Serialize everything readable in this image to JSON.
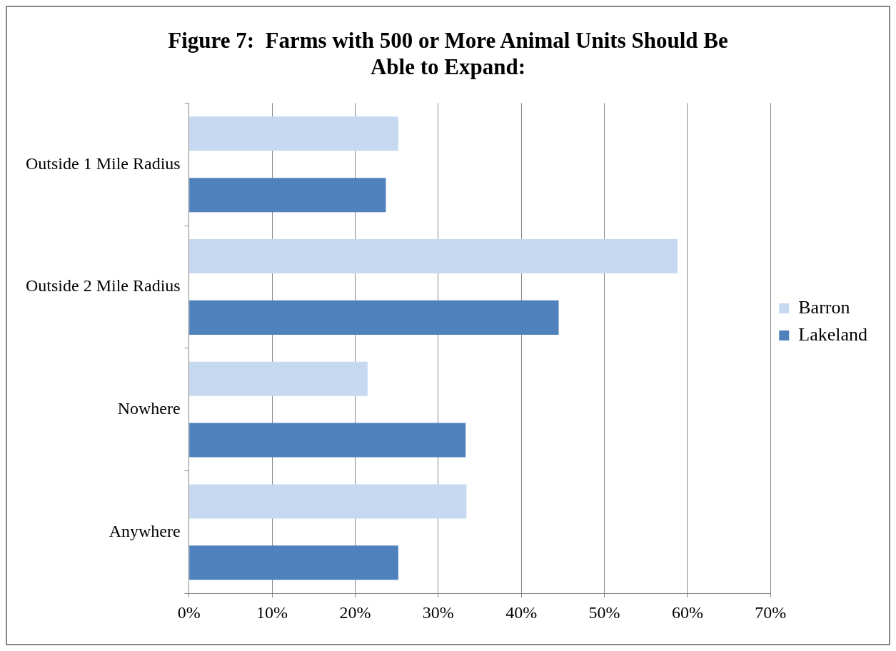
{
  "chart_data": {
    "type": "bar",
    "orientation": "horizontal",
    "title": "Figure 7:  Farms with 500 or More Animal Units Should Be Able to Expand:",
    "categories": [
      "Outside 1 Mile Radius",
      "Outside 2 Mile Radius",
      "Nowhere",
      "Anywhere"
    ],
    "series": [
      {
        "name": "Barron",
        "color": "#c6d9f1",
        "values": [
          25.2,
          58.8,
          21.5,
          33.4
        ]
      },
      {
        "name": "Lakeland",
        "color": "#4f81bd",
        "values": [
          23.7,
          44.5,
          33.3,
          25.2
        ]
      }
    ],
    "xlim": [
      0,
      70
    ],
    "xticks": [
      {
        "value": 0,
        "label": "0%"
      },
      {
        "value": 10,
        "label": "10%"
      },
      {
        "value": 20,
        "label": "20%"
      },
      {
        "value": 30,
        "label": "30%"
      },
      {
        "value": 40,
        "label": "40%"
      },
      {
        "value": 50,
        "label": "50%"
      },
      {
        "value": 60,
        "label": "60%"
      },
      {
        "value": 70,
        "label": "70%"
      }
    ],
    "grid": "x",
    "legend": "right"
  }
}
